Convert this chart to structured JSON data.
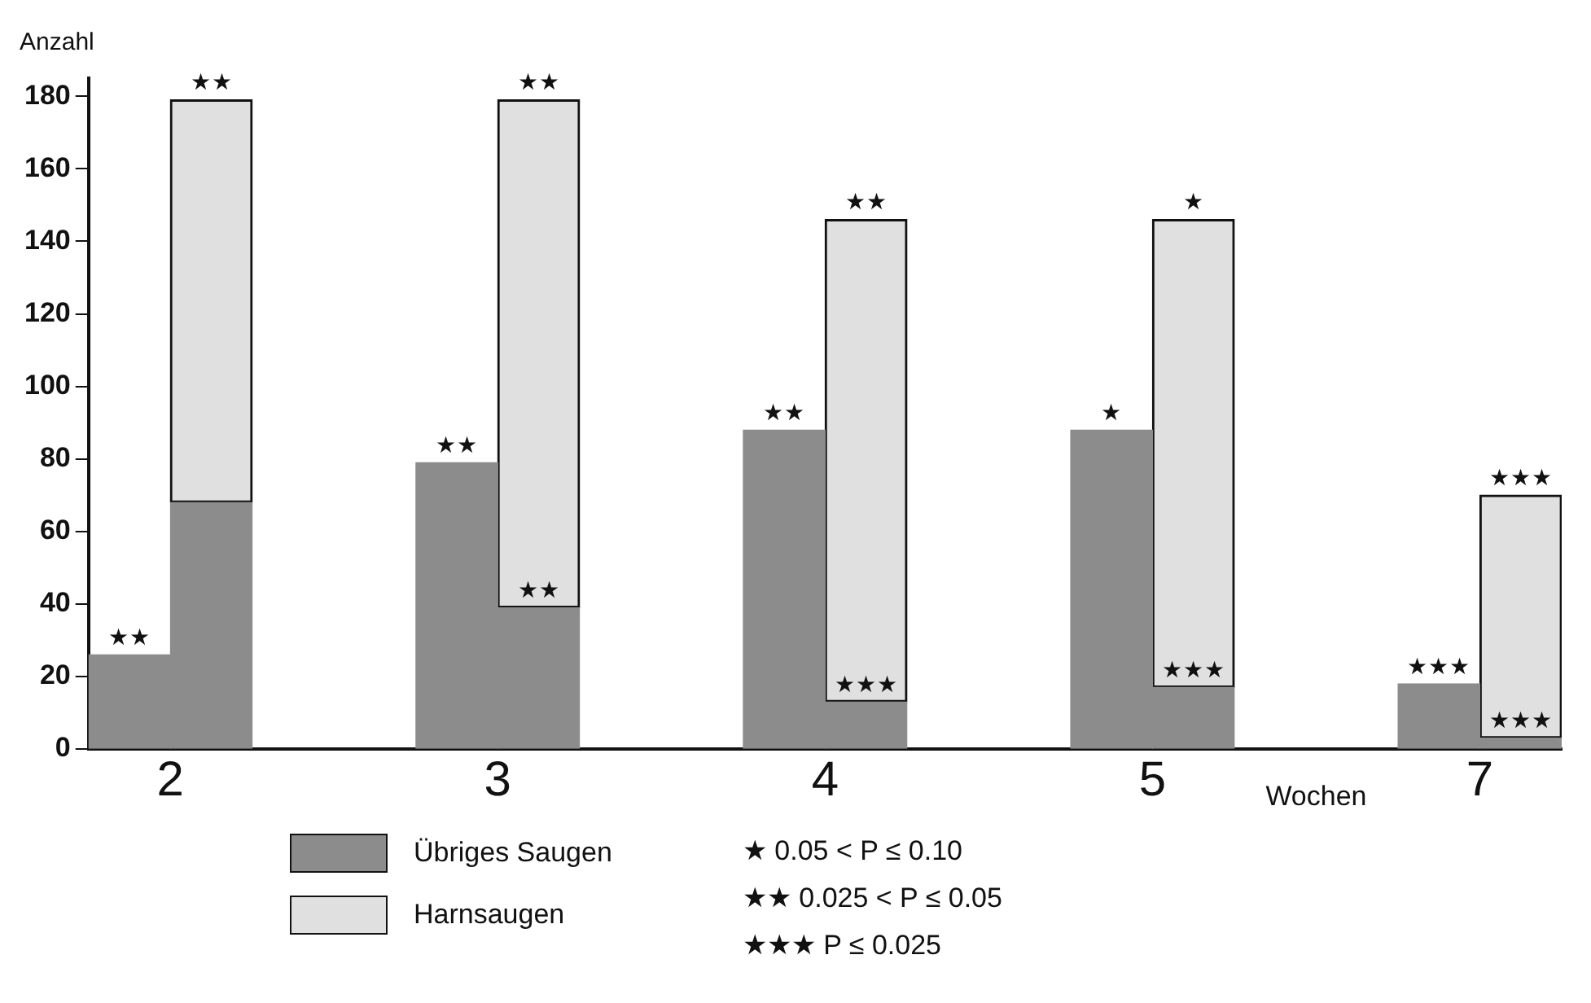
{
  "chart_data": {
    "type": "bar",
    "stacked": true,
    "ylabel": "Anzahl",
    "xlabel": "Wochen",
    "categories": [
      "2",
      null,
      null,
      null,
      "3",
      null,
      null,
      null,
      "4",
      null,
      null,
      null,
      "5",
      null,
      null,
      null,
      "7",
      null
    ],
    "series": [
      {
        "name": "Übriges Saugen",
        "color": "#8c8c8c",
        "values": [
          26,
          68,
          null,
          null,
          79,
          39,
          null,
          null,
          88,
          13,
          null,
          null,
          88,
          17,
          null,
          null,
          18,
          3
        ]
      },
      {
        "name": "Harnsaugen",
        "color": "#e0e0e0",
        "values": [
          null,
          111,
          null,
          null,
          null,
          140,
          null,
          null,
          null,
          133,
          null,
          null,
          null,
          129,
          null,
          null,
          null,
          67
        ]
      }
    ],
    "ylim": [
      0,
      185
    ],
    "yticks": [
      0,
      20,
      40,
      60,
      80,
      100,
      120,
      140,
      160,
      180
    ],
    "grid": false,
    "legend": "bottom left",
    "annotations": [
      {
        "text": "★★",
        "x": "2",
        "y": 26
      },
      {
        "text": "★★",
        "x": "2",
        "y": 179
      },
      {
        "text": "★★",
        "x": "3",
        "y": 79
      },
      {
        "text": "★★",
        "x": "3",
        "y": 39
      },
      {
        "text": "★★",
        "x": "3",
        "y": 179
      },
      {
        "text": "★★",
        "x": "4",
        "y": 88
      },
      {
        "text": "★★★",
        "x": "4",
        "y": 13
      },
      {
        "text": "★★",
        "x": "4",
        "y": 146
      },
      {
        "text": "★",
        "x": "5",
        "y": 88
      },
      {
        "text": "★★★",
        "x": "5",
        "y": 17
      },
      {
        "text": "★",
        "x": "5",
        "y": 146
      },
      {
        "text": "★★★",
        "x": "7",
        "y": 18
      },
      {
        "text": "★★★",
        "x": "7",
        "y": 3
      },
      {
        "text": "★★★",
        "x": "7",
        "y": 70
      },
      "★  0.05 < P ≤ 0.10",
      "★★  0.025 < P ≤ 0.05",
      "★★★  P ≤ 0.025"
    ]
  }
}
